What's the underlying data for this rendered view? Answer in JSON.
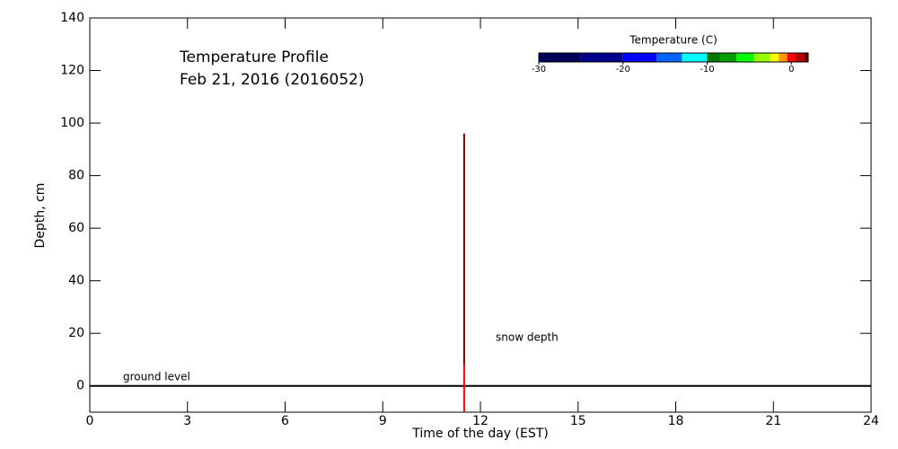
{
  "chart_data": {
    "type": "profile",
    "title": "Temperature Profile",
    "subtitle": "Feb 21, 2016 (2016052)",
    "x_label": "Time of the day (EST)",
    "y_label": "Depth, cm",
    "xlim": [
      0,
      24
    ],
    "xticks": [
      0,
      3,
      6,
      9,
      12,
      15,
      18,
      21,
      24
    ],
    "ylim": [
      -10,
      140
    ],
    "yticks": [
      0,
      20,
      40,
      60,
      80,
      100,
      120,
      140
    ],
    "ground_level": 0,
    "annotations": [
      "ground level",
      "snow depth"
    ],
    "profile": {
      "x": 11.5,
      "depth": [
        -10,
        8,
        96
      ],
      "colors": [
        "#ff0000",
        "#700000"
      ]
    },
    "colorbar": {
      "label": "Temperature (C)",
      "lim": [
        -30,
        2
      ],
      "ticks": [
        -30,
        -20,
        -10,
        0
      ],
      "bins": [
        -30,
        -25,
        -20,
        -16,
        -13,
        -10,
        -8.5,
        -6.5,
        -4.5,
        -2.5,
        -1.5,
        -0.5,
        0.5,
        1.5,
        2
      ],
      "colors": [
        "#00005a",
        "#00008c",
        "#0000ff",
        "#0064ff",
        "#00ffff",
        "#007800",
        "#00a000",
        "#00ff00",
        "#96ff00",
        "#ffff00",
        "#ff9600",
        "#ff0000",
        "#b40000",
        "#640000"
      ]
    }
  }
}
